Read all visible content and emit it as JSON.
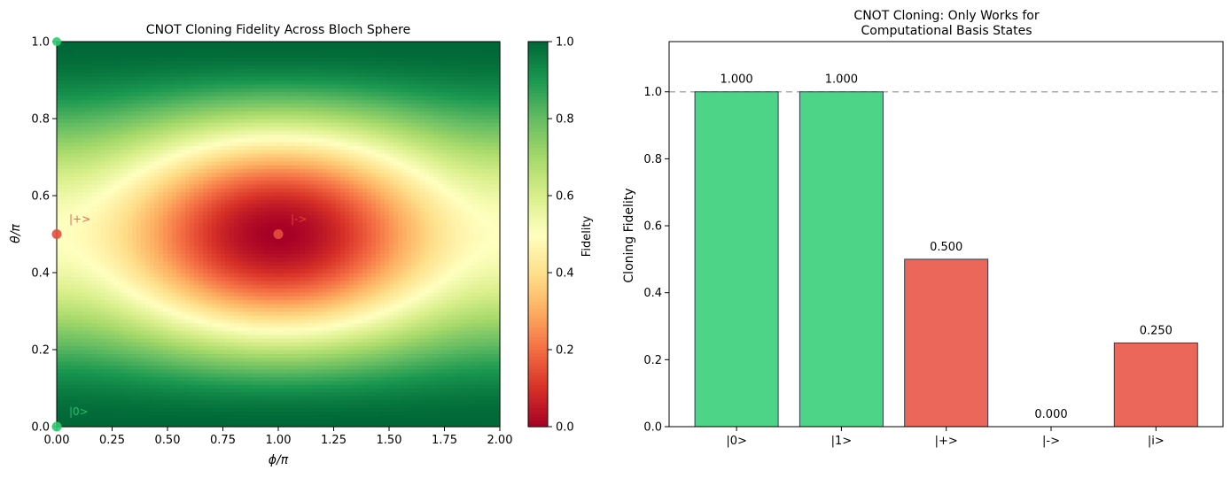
{
  "chart_data": [
    {
      "type": "heatmap",
      "title": "CNOT Cloning Fidelity Across Bloch Sphere",
      "xlabel": "ϕ/π",
      "ylabel": "θ/π",
      "xlim": [
        0,
        2
      ],
      "ylim": [
        0,
        1
      ],
      "xticks": [
        0,
        0.25,
        0.5,
        0.75,
        1.0,
        1.25,
        1.5,
        1.75,
        2.0
      ],
      "xtick_labels": [
        "0.00",
        "0.25",
        "0.50",
        "0.75",
        "1.00",
        "1.25",
        "1.50",
        "1.75",
        "2.00"
      ],
      "yticks": [
        0,
        0.2,
        0.4,
        0.6,
        0.8,
        1.0
      ],
      "ytick_labels": [
        "0.0",
        "0.2",
        "0.4",
        "0.6",
        "0.8",
        "1.0"
      ],
      "function": "fidelity = cos^4(θ/2) + sin^4(θ/2) − (1/2)·sin^2(θ)·sin^2(ϕ/2)",
      "grid_resolution": [
        100,
        100
      ],
      "colormap": "RdYlGn",
      "colorbar": {
        "label": "Fidelity",
        "range": [
          0,
          1
        ],
        "ticks": [
          0,
          0.2,
          0.4,
          0.6,
          0.8,
          1.0
        ],
        "tick_labels": [
          "0.0",
          "0.2",
          "0.4",
          "0.6",
          "0.8",
          "1.0"
        ]
      },
      "annotations": [
        {
          "label": "|0>",
          "x": 0,
          "y": 0,
          "color": "#2ecc71"
        },
        {
          "label": "|+>",
          "x": 0,
          "y": 0.5,
          "color": "#e74c3c"
        },
        {
          "label": "|->",
          "x": 1,
          "y": 0.5,
          "color": "#e74c3c"
        }
      ],
      "extra_markers": [
        {
          "x": 0,
          "y": 1,
          "color": "#2ecc71"
        }
      ]
    },
    {
      "type": "bar",
      "title": "CNOT Cloning: Only Works for Computational Basis States",
      "title_lines": [
        "CNOT Cloning: Only Works for",
        "Computational Basis States"
      ],
      "categories": [
        "|0>",
        "|1>",
        "|+>",
        "|->",
        "|i>"
      ],
      "values": [
        1.0,
        1.0,
        0.5,
        0.0,
        0.25
      ],
      "value_labels": [
        "1.000",
        "1.000",
        "0.500",
        "0.000",
        "0.250"
      ],
      "colors": [
        "#2ecc71",
        "#2ecc71",
        "#e74c3c",
        "#e74c3c",
        "#e74c3c"
      ],
      "xlabel": "",
      "ylabel": "Cloning Fidelity",
      "ylim": [
        0,
        1.15
      ],
      "yticks": [
        0,
        0.2,
        0.4,
        0.6,
        0.8,
        1.0
      ],
      "ytick_labels": [
        "0.0",
        "0.2",
        "0.4",
        "0.6",
        "0.8",
        "1.0"
      ],
      "reference_line": {
        "y": 1.0,
        "style": "dashed",
        "color": "#999999"
      }
    }
  ]
}
